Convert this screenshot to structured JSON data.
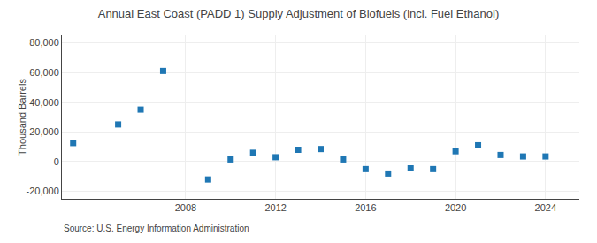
{
  "chart_data": {
    "type": "scatter",
    "title": "Annual East Coast (PADD 1) Supply Adjustment of Biofuels (incl. Fuel Ethanol)",
    "ylabel": "Thousand Barrels",
    "annotations": [
      "Source: U.S. Energy Information Administration"
    ],
    "x": [
      2003,
      2005,
      2006,
      2007,
      2009,
      2010,
      2011,
      2012,
      2013,
      2014,
      2015,
      2016,
      2017,
      2018,
      2019,
      2020,
      2021,
      2022,
      2023,
      2024
    ],
    "values": [
      12500,
      25000,
      35000,
      61000,
      -12000,
      1500,
      6000,
      3000,
      8000,
      8500,
      1500,
      -5000,
      -8000,
      -4500,
      -5000,
      7000,
      11000,
      4500,
      3500,
      3500
    ],
    "marker": "square",
    "xlim": [
      2002.5,
      2025.5
    ],
    "xticks": [
      2008,
      2012,
      2016,
      2020,
      2024
    ],
    "ylim": [
      -25000,
      85000
    ],
    "yticks": [
      {
        "value": -20000,
        "label": "-20,000"
      },
      0,
      {
        "value": 20000,
        "label": "20,000"
      },
      {
        "value": 40000,
        "label": "40,000"
      },
      {
        "value": 60000,
        "label": "60,000"
      },
      {
        "value": 80000,
        "label": "80,000"
      }
    ],
    "grid": true
  }
}
